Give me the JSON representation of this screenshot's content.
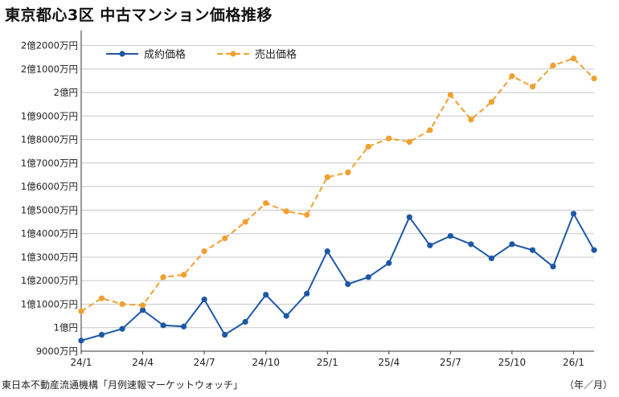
{
  "title": "東京都心3区 中古マンション価格推移",
  "source": "東日本不動産流通機構「月例速報マーケットウォッチ」",
  "unit": "（年／月）",
  "colors": {
    "contract": "#1d58a6",
    "asking": "#f0a030",
    "grid": "#c8c8c8",
    "axis": "#333333"
  },
  "chart_data": {
    "type": "line",
    "title": "東京都心3区 中古マンション価格推移",
    "xlabel": "（年／月）",
    "ylabel": "",
    "ylim": [
      9000,
      22500
    ],
    "y_unit": "万円",
    "yticks": [
      {
        "value": 9000,
        "label": "9000万円"
      },
      {
        "value": 10000,
        "label": "1億円"
      },
      {
        "value": 11000,
        "label": "1億1000万円"
      },
      {
        "value": 12000,
        "label": "1億2000万円"
      },
      {
        "value": 13000,
        "label": "1億3000万円"
      },
      {
        "value": 14000,
        "label": "1億4000万円"
      },
      {
        "value": 15000,
        "label": "1億5000万円"
      },
      {
        "value": 16000,
        "label": "1億6000万円"
      },
      {
        "value": 17000,
        "label": "1億7000万円"
      },
      {
        "value": 18000,
        "label": "1億8000万円"
      },
      {
        "value": 19000,
        "label": "1億9000万円"
      },
      {
        "value": 20000,
        "label": "2億円"
      },
      {
        "value": 21000,
        "label": "2億1000万円"
      },
      {
        "value": 22000,
        "label": "2億2000万円"
      }
    ],
    "x": [
      "24/1",
      "24/2",
      "24/3",
      "24/4",
      "24/5",
      "24/6",
      "24/7",
      "24/8",
      "24/9",
      "24/10",
      "24/11",
      "24/12",
      "25/1",
      "25/2",
      "25/3",
      "25/4",
      "25/5",
      "25/6",
      "25/7",
      "25/8",
      "25/9",
      "25/10",
      "25/11",
      "25/12",
      "26/1",
      "26/2"
    ],
    "xticks": [
      "24/1",
      "24/4",
      "24/7",
      "24/10",
      "25/1",
      "25/4",
      "25/7",
      "25/10",
      "26/1"
    ],
    "grid": true,
    "legend_position": "top-left",
    "series": [
      {
        "name": "成約価格",
        "style": "solid",
        "color": "#1d58a6",
        "values": [
          9450,
          9700,
          9950,
          10750,
          10100,
          10050,
          11200,
          9700,
          10250,
          11400,
          10500,
          11450,
          13250,
          11850,
          12150,
          12750,
          14700,
          13500,
          13900,
          13550,
          12950,
          13550,
          13300,
          12600,
          14850,
          13300
        ]
      },
      {
        "name": "売出価格",
        "style": "dashed",
        "color": "#f0a030",
        "values": [
          10700,
          11250,
          11000,
          10950,
          12150,
          12250,
          13250,
          13800,
          14500,
          15300,
          14950,
          14800,
          16400,
          16600,
          17700,
          18050,
          17900,
          18400,
          19900,
          18850,
          19600,
          20700,
          20250,
          21150,
          21450,
          20600
        ]
      }
    ]
  }
}
